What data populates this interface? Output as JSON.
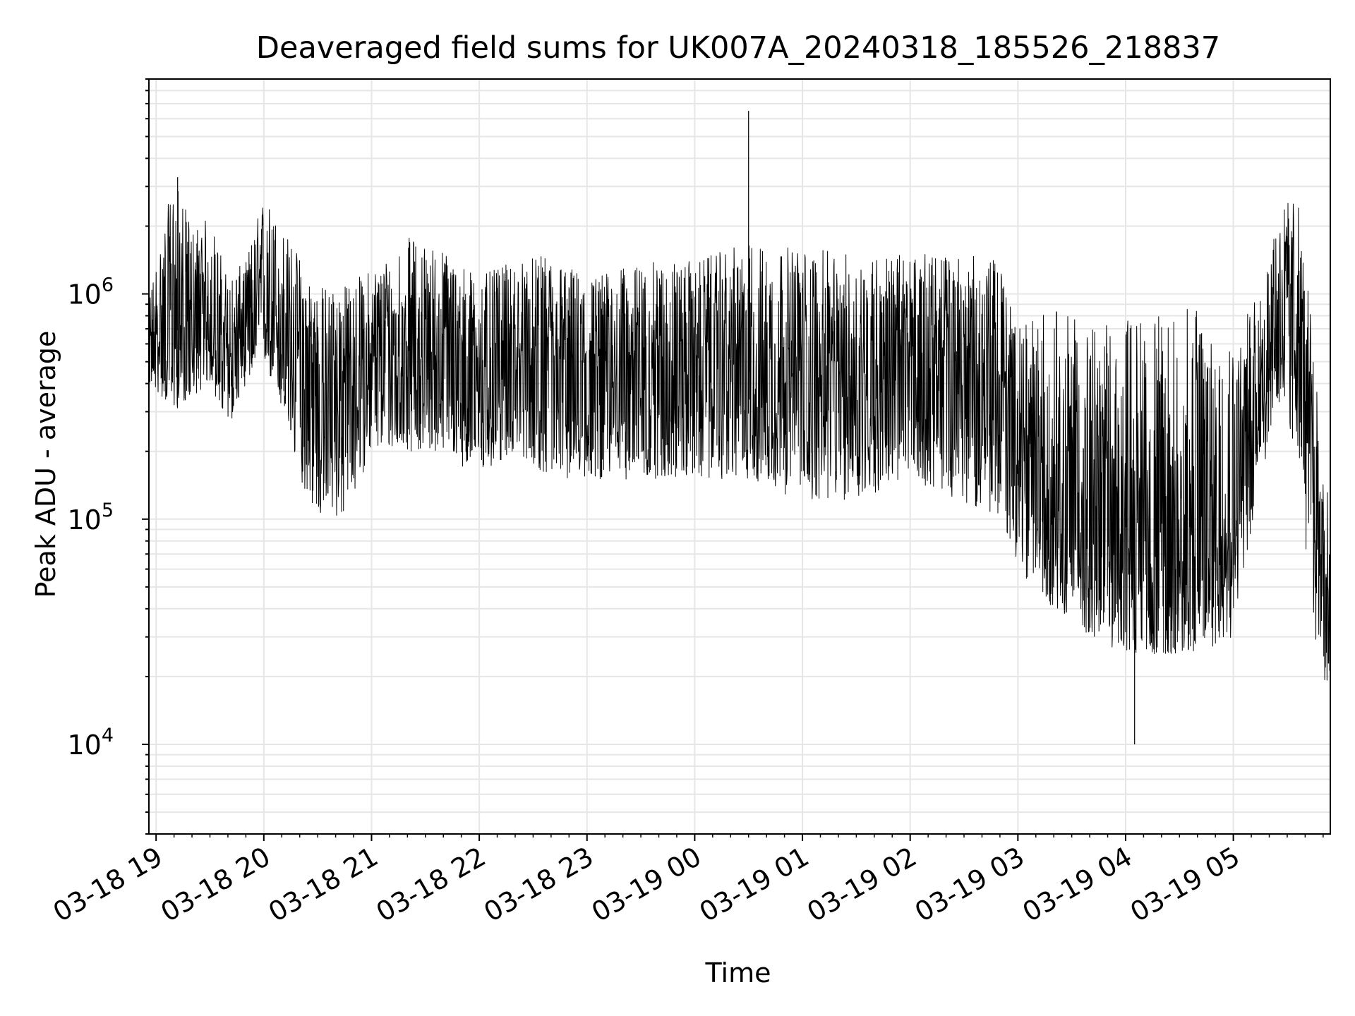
{
  "chart_data": {
    "type": "line",
    "title": "Deaveraged field sums for UK007A_20240318_185526_218837",
    "xlabel": "Time",
    "ylabel": "Peak ADU - average",
    "yscale": "log",
    "ylim": [
      4000,
      9000000
    ],
    "xlim": [
      "2024-03-18T18:56",
      "2024-03-19T05:54"
    ],
    "grid": true,
    "line_color": "#000000",
    "grid_color": "#e6e6e6",
    "x_ticks": [
      {
        "t": "2024-03-18T19:00",
        "label": "03-18 19"
      },
      {
        "t": "2024-03-18T20:00",
        "label": "03-18 20"
      },
      {
        "t": "2024-03-18T21:00",
        "label": "03-18 21"
      },
      {
        "t": "2024-03-18T22:00",
        "label": "03-18 22"
      },
      {
        "t": "2024-03-18T23:00",
        "label": "03-18 23"
      },
      {
        "t": "2024-03-19T00:00",
        "label": "03-19 00"
      },
      {
        "t": "2024-03-19T01:00",
        "label": "03-19 01"
      },
      {
        "t": "2024-03-19T02:00",
        "label": "03-19 02"
      },
      {
        "t": "2024-03-19T03:00",
        "label": "03-19 03"
      },
      {
        "t": "2024-03-19T04:00",
        "label": "03-19 04"
      },
      {
        "t": "2024-03-19T05:00",
        "label": "03-19 05"
      }
    ],
    "y_ticks": [
      {
        "value": 10000,
        "base": "10",
        "exp": "4"
      },
      {
        "value": 100000,
        "base": "10",
        "exp": "5"
      },
      {
        "value": 1000000,
        "base": "10",
        "exp": "6"
      }
    ],
    "series": [
      {
        "style": "dense noisy trace; envelope of approximate lower/median/upper values read from plot",
        "x": [
          "2024-03-18T18:56",
          "2024-03-18T19:10",
          "2024-03-18T19:20",
          "2024-03-18T19:30",
          "2024-03-18T19:40",
          "2024-03-18T19:50",
          "2024-03-18T20:00",
          "2024-03-18T20:10",
          "2024-03-18T20:20",
          "2024-03-18T20:30",
          "2024-03-18T20:45",
          "2024-03-18T21:00",
          "2024-03-18T21:20",
          "2024-03-18T21:40",
          "2024-03-18T22:00",
          "2024-03-18T22:20",
          "2024-03-18T22:40",
          "2024-03-18T23:00",
          "2024-03-18T23:20",
          "2024-03-18T23:40",
          "2024-03-19T00:00",
          "2024-03-19T00:30",
          "2024-03-19T01:00",
          "2024-03-19T01:30",
          "2024-03-19T02:00",
          "2024-03-19T02:30",
          "2024-03-19T02:50",
          "2024-03-19T03:00",
          "2024-03-19T03:20",
          "2024-03-19T03:40",
          "2024-03-19T04:00",
          "2024-03-19T04:20",
          "2024-03-19T04:40",
          "2024-03-19T05:00",
          "2024-03-19T05:15",
          "2024-03-19T05:25",
          "2024-03-19T05:35",
          "2024-03-19T05:45",
          "2024-03-19T05:54"
        ],
        "y_low": [
          400000,
          300000,
          350000,
          400000,
          250000,
          400000,
          500000,
          300000,
          150000,
          100000,
          100000,
          200000,
          200000,
          200000,
          150000,
          200000,
          150000,
          150000,
          150000,
          150000,
          150000,
          150000,
          120000,
          120000,
          150000,
          120000,
          100000,
          60000,
          40000,
          30000,
          25000,
          25000,
          25000,
          30000,
          150000,
          300000,
          200000,
          30000,
          15000
        ],
        "y_mid": [
          550000,
          700000,
          650000,
          700000,
          500000,
          700000,
          900000,
          700000,
          450000,
          350000,
          400000,
          500000,
          550000,
          500000,
          450000,
          500000,
          450000,
          450000,
          500000,
          500000,
          500000,
          450000,
          400000,
          400000,
          550000,
          450000,
          400000,
          200000,
          130000,
          100000,
          90000,
          80000,
          80000,
          100000,
          400000,
          800000,
          1000000,
          150000,
          30000
        ],
        "y_high": [
          1000000,
          3300000,
          2000000,
          2200000,
          1200000,
          1400000,
          2800000,
          2000000,
          1500000,
          1100000,
          1100000,
          1300000,
          1800000,
          1600000,
          1200000,
          1400000,
          1500000,
          1200000,
          1300000,
          1400000,
          1400000,
          1700000,
          1600000,
          1500000,
          1500000,
          1500000,
          1400000,
          700000,
          900000,
          700000,
          800000,
          800000,
          900000,
          700000,
          1000000,
          2200000,
          3000000,
          600000,
          100000
        ]
      }
    ],
    "spikes": [
      {
        "x": "2024-03-19T00:30",
        "y": 6500000
      },
      {
        "x": "2024-03-19T04:05",
        "y": 10000
      },
      {
        "x": "2024-03-18T19:12",
        "y": 3300000
      }
    ]
  }
}
